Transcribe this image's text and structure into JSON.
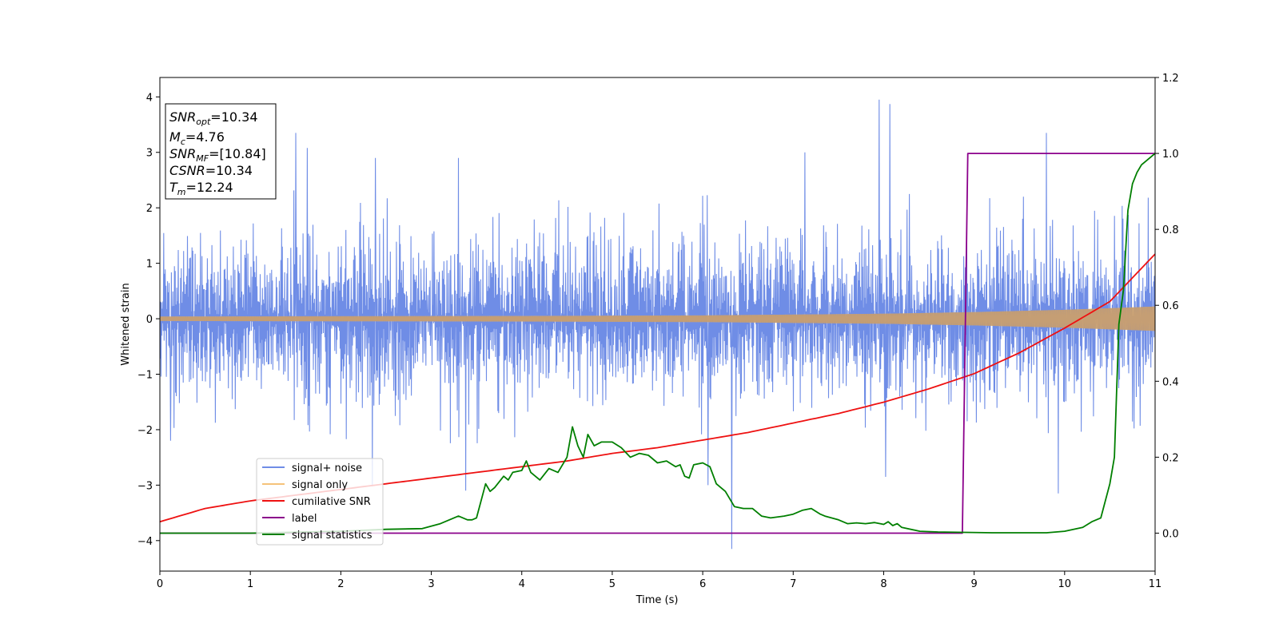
{
  "chart_data": {
    "type": "line",
    "xlabel": "Time (s)",
    "ylabel": "Whitened strain",
    "xlim": [
      0,
      11
    ],
    "ylim": [
      -4.55,
      4.35
    ],
    "y2lim": [
      -0.1,
      1.2
    ],
    "xticks": [
      "0",
      "1",
      "2",
      "3",
      "4",
      "5",
      "6",
      "7",
      "8",
      "9",
      "10",
      "11"
    ],
    "yticks": [
      "−4",
      "−3",
      "−2",
      "−1",
      "0",
      "1",
      "2",
      "3",
      "4"
    ],
    "y2ticks": [
      "0.0",
      "0.2",
      "0.4",
      "0.6",
      "0.8",
      "1.0",
      "1.2"
    ],
    "grid": false,
    "legend_position": "lower-left",
    "colors": {
      "signal_noise": "#6f8de6",
      "signal_only": "#f5c27a",
      "cumulative_snr": "#ee1111",
      "label": "#8b008b",
      "signal_statistics": "#007f00"
    },
    "series": [
      {
        "name": "signal+ noise",
        "axis": "left",
        "envelope_x": [
          0,
          1,
          2,
          3,
          4,
          5,
          6,
          7,
          8,
          9,
          10,
          11
        ],
        "envelope_upper": [
          2.2,
          2.6,
          2.4,
          2.5,
          2.3,
          2.4,
          2.4,
          2.3,
          2.7,
          2.4,
          2.3,
          2.4
        ],
        "envelope_lower": [
          -2.2,
          -2.3,
          -2.4,
          -2.3,
          -2.3,
          -2.4,
          -2.3,
          -2.3,
          -2.4,
          -2.2,
          -2.3,
          -2.3
        ],
        "peaks": [
          {
            "x": 1.5,
            "y": 3.35
          },
          {
            "x": 1.63,
            "y": 3.08
          },
          {
            "x": 2.38,
            "y": 2.9
          },
          {
            "x": 3.3,
            "y": 2.9
          },
          {
            "x": 7.13,
            "y": 3.0
          },
          {
            "x": 7.95,
            "y": 3.95
          },
          {
            "x": 8.07,
            "y": 3.87
          },
          {
            "x": 9.8,
            "y": 3.35
          },
          {
            "x": 6.32,
            "y": -4.15
          },
          {
            "x": 3.38,
            "y": -3.1
          },
          {
            "x": 9.93,
            "y": -3.15
          },
          {
            "x": 2.35,
            "y": -3.0
          },
          {
            "x": 8.02,
            "y": -2.85
          },
          {
            "x": 6.06,
            "y": -3.0
          },
          {
            "x": 0.12,
            "y": -2.2
          }
        ]
      },
      {
        "name": "signal only",
        "axis": "left",
        "envelope_x": [
          0,
          2,
          4,
          6,
          8,
          9,
          10,
          11
        ],
        "envelope_amplitude": [
          0.04,
          0.045,
          0.05,
          0.06,
          0.09,
          0.12,
          0.16,
          0.22
        ]
      },
      {
        "name": "cumilative SNR",
        "axis": "right",
        "x": [
          0,
          0.5,
          1,
          1.5,
          2,
          2.5,
          3,
          3.5,
          4,
          4.5,
          5,
          5.5,
          6,
          6.5,
          7,
          7.5,
          8,
          8.5,
          9,
          9.5,
          10,
          10.5,
          11
        ],
        "y": [
          0.03,
          0.065,
          0.085,
          0.1,
          0.115,
          0.13,
          0.145,
          0.16,
          0.175,
          0.19,
          0.21,
          0.225,
          0.245,
          0.265,
          0.29,
          0.315,
          0.345,
          0.38,
          0.42,
          0.475,
          0.54,
          0.61,
          0.735
        ]
      },
      {
        "name": "label",
        "axis": "right",
        "x": [
          0,
          8.87,
          8.93,
          11
        ],
        "y": [
          0.0,
          0.0,
          1.0,
          1.0
        ]
      },
      {
        "name": "signal statistics",
        "axis": "right",
        "x": [
          0,
          1,
          2,
          2.5,
          2.9,
          3.1,
          3.2,
          3.3,
          3.4,
          3.45,
          3.5,
          3.6,
          3.65,
          3.7,
          3.8,
          3.85,
          3.9,
          4.0,
          4.05,
          4.1,
          4.2,
          4.3,
          4.4,
          4.5,
          4.56,
          4.62,
          4.68,
          4.73,
          4.8,
          4.88,
          5.0,
          5.1,
          5.2,
          5.3,
          5.4,
          5.5,
          5.6,
          5.7,
          5.75,
          5.8,
          5.85,
          5.9,
          6.0,
          6.08,
          6.15,
          6.25,
          6.35,
          6.45,
          6.55,
          6.65,
          6.75,
          6.9,
          7.0,
          7.1,
          7.2,
          7.3,
          7.35,
          7.5,
          7.6,
          7.7,
          7.8,
          7.9,
          8.0,
          8.05,
          8.1,
          8.15,
          8.2,
          8.4,
          8.6,
          8.9,
          9.2,
          9.5,
          9.8,
          10.0,
          10.2,
          10.3,
          10.4,
          10.5,
          10.55,
          10.6,
          10.65,
          10.7,
          10.75,
          10.8,
          10.85,
          10.9,
          11.0
        ],
        "y": [
          0.0,
          0.0,
          0.005,
          0.01,
          0.012,
          0.025,
          0.035,
          0.045,
          0.035,
          0.035,
          0.04,
          0.13,
          0.11,
          0.12,
          0.15,
          0.14,
          0.16,
          0.165,
          0.19,
          0.16,
          0.14,
          0.17,
          0.16,
          0.2,
          0.28,
          0.23,
          0.2,
          0.26,
          0.23,
          0.24,
          0.24,
          0.225,
          0.2,
          0.21,
          0.205,
          0.185,
          0.19,
          0.175,
          0.18,
          0.15,
          0.145,
          0.18,
          0.185,
          0.175,
          0.13,
          0.11,
          0.07,
          0.065,
          0.065,
          0.045,
          0.04,
          0.045,
          0.05,
          0.06,
          0.065,
          0.05,
          0.045,
          0.035,
          0.025,
          0.027,
          0.025,
          0.028,
          0.023,
          0.03,
          0.02,
          0.025,
          0.015,
          0.005,
          0.003,
          0.002,
          0.001,
          0.001,
          0.001,
          0.005,
          0.015,
          0.03,
          0.04,
          0.13,
          0.2,
          0.55,
          0.64,
          0.85,
          0.92,
          0.95,
          0.97,
          0.98,
          1.0
        ]
      }
    ],
    "info_box": {
      "snr_opt": {
        "main": "SNR",
        "sub": "opt",
        "value": "=10.34"
      },
      "mc": {
        "main": "M",
        "sub": "c",
        "value": "=4.76"
      },
      "snr_mf": {
        "main": "SNR",
        "sub": "MF",
        "value": "=[10.84]"
      },
      "csnr": {
        "main": "CSNR",
        "value": "=10.34"
      },
      "tm": {
        "main": "T",
        "sub": "m",
        "value": "=12.24"
      }
    }
  }
}
